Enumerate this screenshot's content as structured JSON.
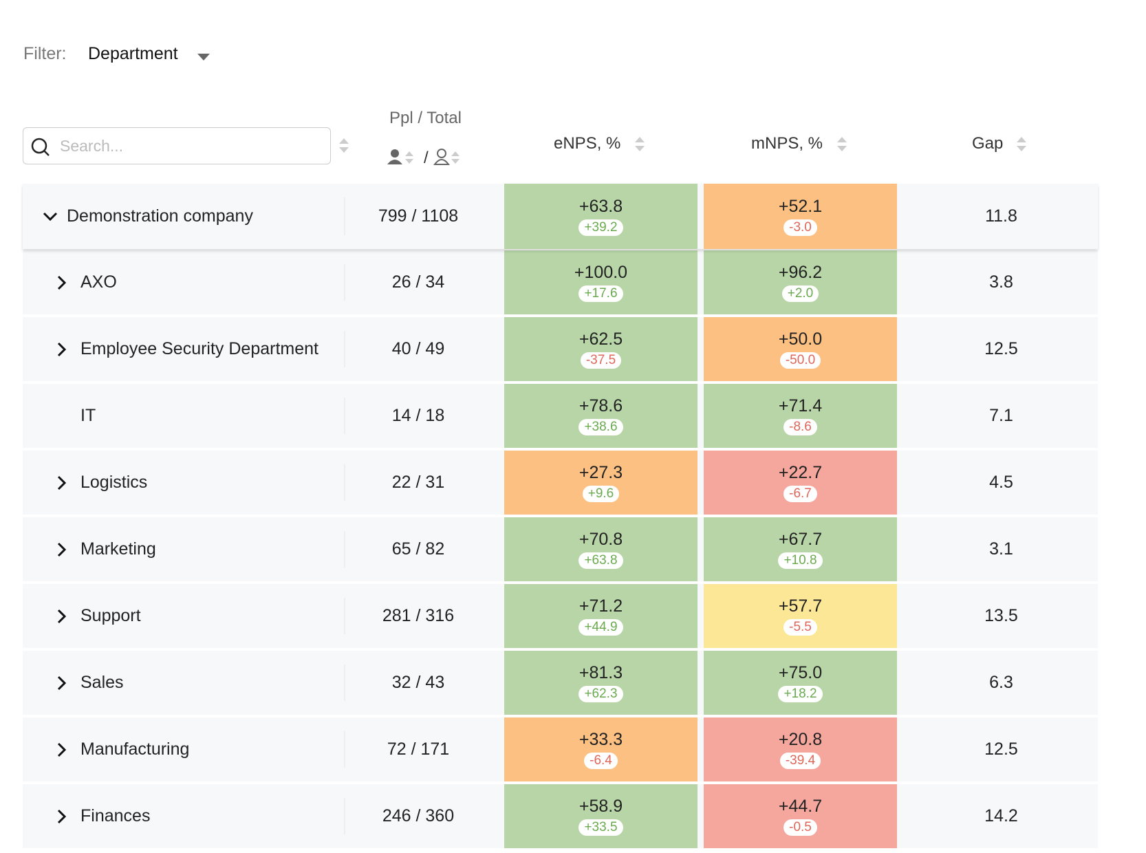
{
  "filter": {
    "label": "Filter:",
    "value": "Department"
  },
  "search": {
    "placeholder": "Search..."
  },
  "columns": {
    "ppl": "Ppl / Total",
    "ppl_separator": "/",
    "enps": "eNPS, %",
    "mnps": "mNPS, %",
    "gap": "Gap"
  },
  "rows": [
    {
      "name": "Demonstration company",
      "toggle": "down",
      "ppl": "799 / 1108",
      "enps": {
        "value": "+63.8",
        "delta": "+39.2",
        "color": "#b7d5a6"
      },
      "mnps": {
        "value": "+52.1",
        "delta": "-3.0",
        "color": "#fdc083"
      },
      "gap": "11.8"
    },
    {
      "name": "AXO",
      "toggle": "right",
      "ppl": "26 / 34",
      "enps": {
        "value": "+100.0",
        "delta": "+17.6",
        "color": "#b7d5a6"
      },
      "mnps": {
        "value": "+96.2",
        "delta": "+2.0",
        "color": "#b7d5a6"
      },
      "gap": "3.8"
    },
    {
      "name": "Employee Security Department",
      "toggle": "right",
      "ppl": "40 / 49",
      "enps": {
        "value": "+62.5",
        "delta": "-37.5",
        "color": "#b7d5a6"
      },
      "mnps": {
        "value": "+50.0",
        "delta": "-50.0",
        "color": "#fdc083"
      },
      "gap": "12.5"
    },
    {
      "name": "IT",
      "toggle": null,
      "ppl": "14 / 18",
      "enps": {
        "value": "+78.6",
        "delta": "+38.6",
        "color": "#b7d5a6"
      },
      "mnps": {
        "value": "+71.4",
        "delta": "-8.6",
        "color": "#b7d5a6"
      },
      "gap": "7.1"
    },
    {
      "name": "Logistics",
      "toggle": "right",
      "ppl": "22 / 31",
      "enps": {
        "value": "+27.3",
        "delta": "+9.6",
        "color": "#fdc083"
      },
      "mnps": {
        "value": "+22.7",
        "delta": "-6.7",
        "color": "#f5a79e"
      },
      "gap": "4.5"
    },
    {
      "name": "Marketing",
      "toggle": "right",
      "ppl": "65 / 82",
      "enps": {
        "value": "+70.8",
        "delta": "+63.8",
        "color": "#b7d5a6"
      },
      "mnps": {
        "value": "+67.7",
        "delta": "+10.8",
        "color": "#b7d5a6"
      },
      "gap": "3.1"
    },
    {
      "name": "Support",
      "toggle": "right",
      "ppl": "281 / 316",
      "enps": {
        "value": "+71.2",
        "delta": "+44.9",
        "color": "#b7d5a6"
      },
      "mnps": {
        "value": "+57.7",
        "delta": "-5.5",
        "color": "#fce796"
      },
      "gap": "13.5"
    },
    {
      "name": "Sales",
      "toggle": "right",
      "ppl": "32 / 43",
      "enps": {
        "value": "+81.3",
        "delta": "+62.3",
        "color": "#b7d5a6"
      },
      "mnps": {
        "value": "+75.0",
        "delta": "+18.2",
        "color": "#b7d5a6"
      },
      "gap": "6.3"
    },
    {
      "name": "Manufacturing",
      "toggle": "right",
      "ppl": "72 / 171",
      "enps": {
        "value": "+33.3",
        "delta": "-6.4",
        "color": "#fdc083"
      },
      "mnps": {
        "value": "+20.8",
        "delta": "-39.4",
        "color": "#f5a79e"
      },
      "gap": "12.5"
    },
    {
      "name": "Finances",
      "toggle": "right",
      "ppl": "246 / 360",
      "enps": {
        "value": "+58.9",
        "delta": "+33.5",
        "color": "#b7d5a6"
      },
      "mnps": {
        "value": "+44.7",
        "delta": "-0.5",
        "color": "#f5a79e"
      },
      "gap": "14.2"
    }
  ]
}
